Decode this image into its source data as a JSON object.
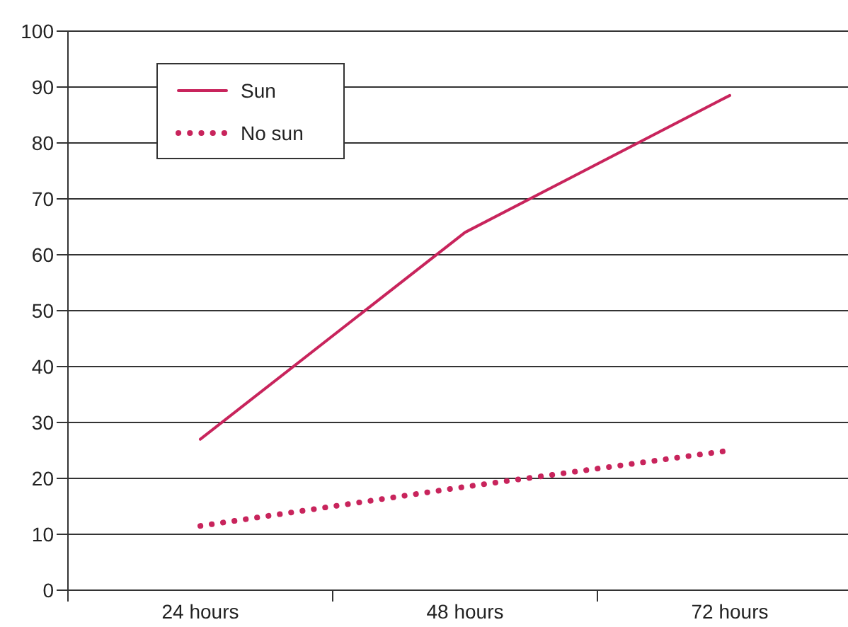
{
  "chart_data": {
    "type": "line",
    "categories": [
      "24 hours",
      "48 hours",
      "72 hours"
    ],
    "series": [
      {
        "name": "Sun",
        "color": "#c8245c",
        "values": [
          27,
          64,
          88.5
        ],
        "line_style": "solid"
      },
      {
        "name": "No sun",
        "color": "#c8245c",
        "values": [
          11.5,
          18.5,
          25
        ],
        "line_style": "dotted"
      }
    ],
    "ylim": [
      0,
      100
    ],
    "yticks": [
      0,
      10,
      20,
      30,
      40,
      50,
      60,
      70,
      80,
      90,
      100
    ],
    "grid": "y",
    "legend": "top left"
  }
}
